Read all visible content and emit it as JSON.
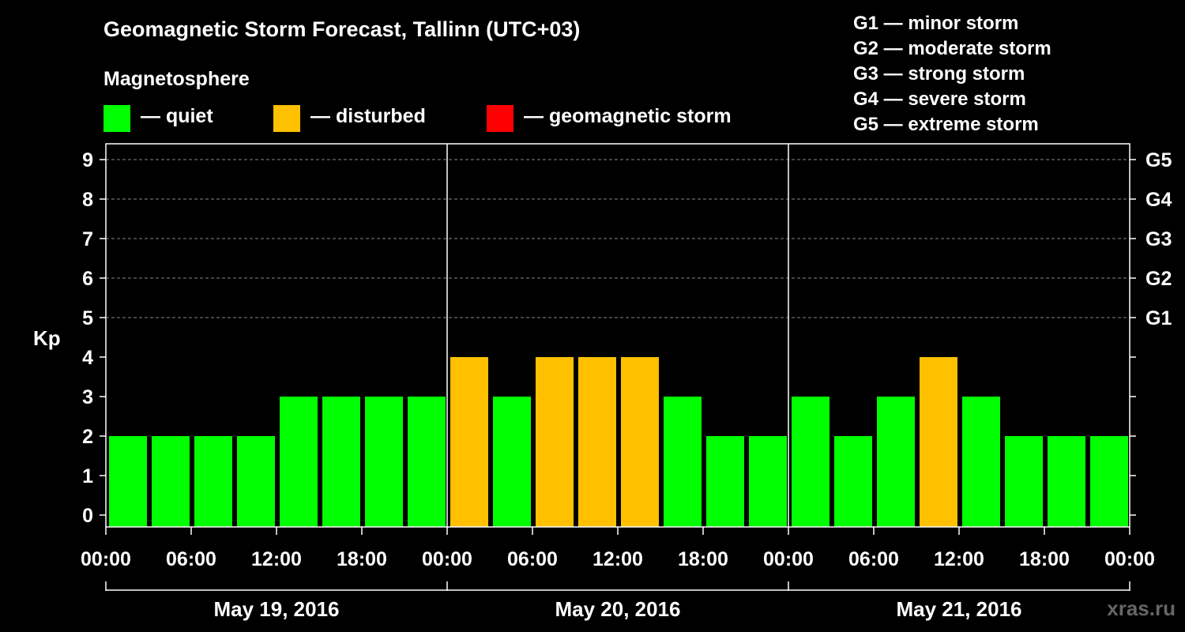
{
  "title": "Geomagnetic Storm Forecast, Tallinn (UTC+03)",
  "magnetosphere": {
    "title": "Magnetosphere",
    "legend": [
      {
        "label": "— quiet",
        "color": "#00ff00"
      },
      {
        "label": "— disturbed",
        "color": "#ffc000"
      },
      {
        "label": "— geomagnetic storm",
        "color": "#ff0000"
      }
    ]
  },
  "storm_scale": [
    "G1 — minor storm",
    "G2 — moderate storm",
    "G3 — strong storm",
    "G4 — severe storm",
    "G5 — extreme storm"
  ],
  "watermark": "xras.ru",
  "chart_data": {
    "type": "bar",
    "ylabel": "Kp",
    "ylim": [
      0,
      9
    ],
    "yticks": [
      "0",
      "1",
      "2",
      "3",
      "4",
      "5",
      "6",
      "7",
      "8",
      "9"
    ],
    "right_axis": [
      {
        "kp": 5,
        "label": "G1"
      },
      {
        "kp": 6,
        "label": "G2"
      },
      {
        "kp": 7,
        "label": "G3"
      },
      {
        "kp": 8,
        "label": "G4"
      },
      {
        "kp": 9,
        "label": "G5"
      }
    ],
    "grid_levels": [
      5,
      6,
      7,
      8,
      9
    ],
    "xtick_labels": [
      "00:00",
      "06:00",
      "12:00",
      "18:00",
      "00:00",
      "06:00",
      "12:00",
      "18:00",
      "00:00",
      "06:00",
      "12:00",
      "18:00",
      "00:00"
    ],
    "days": [
      "May 19, 2016",
      "May 20, 2016",
      "May 21, 2016"
    ],
    "values": [
      2,
      2,
      2,
      2,
      3,
      3,
      3,
      3,
      4,
      3,
      4,
      4,
      4,
      3,
      2,
      2,
      3,
      2,
      3,
      4,
      3,
      2,
      2,
      2
    ],
    "colors": {
      "quiet": "#00ff00",
      "disturbed": "#ffc000",
      "storm": "#ff0000"
    }
  }
}
